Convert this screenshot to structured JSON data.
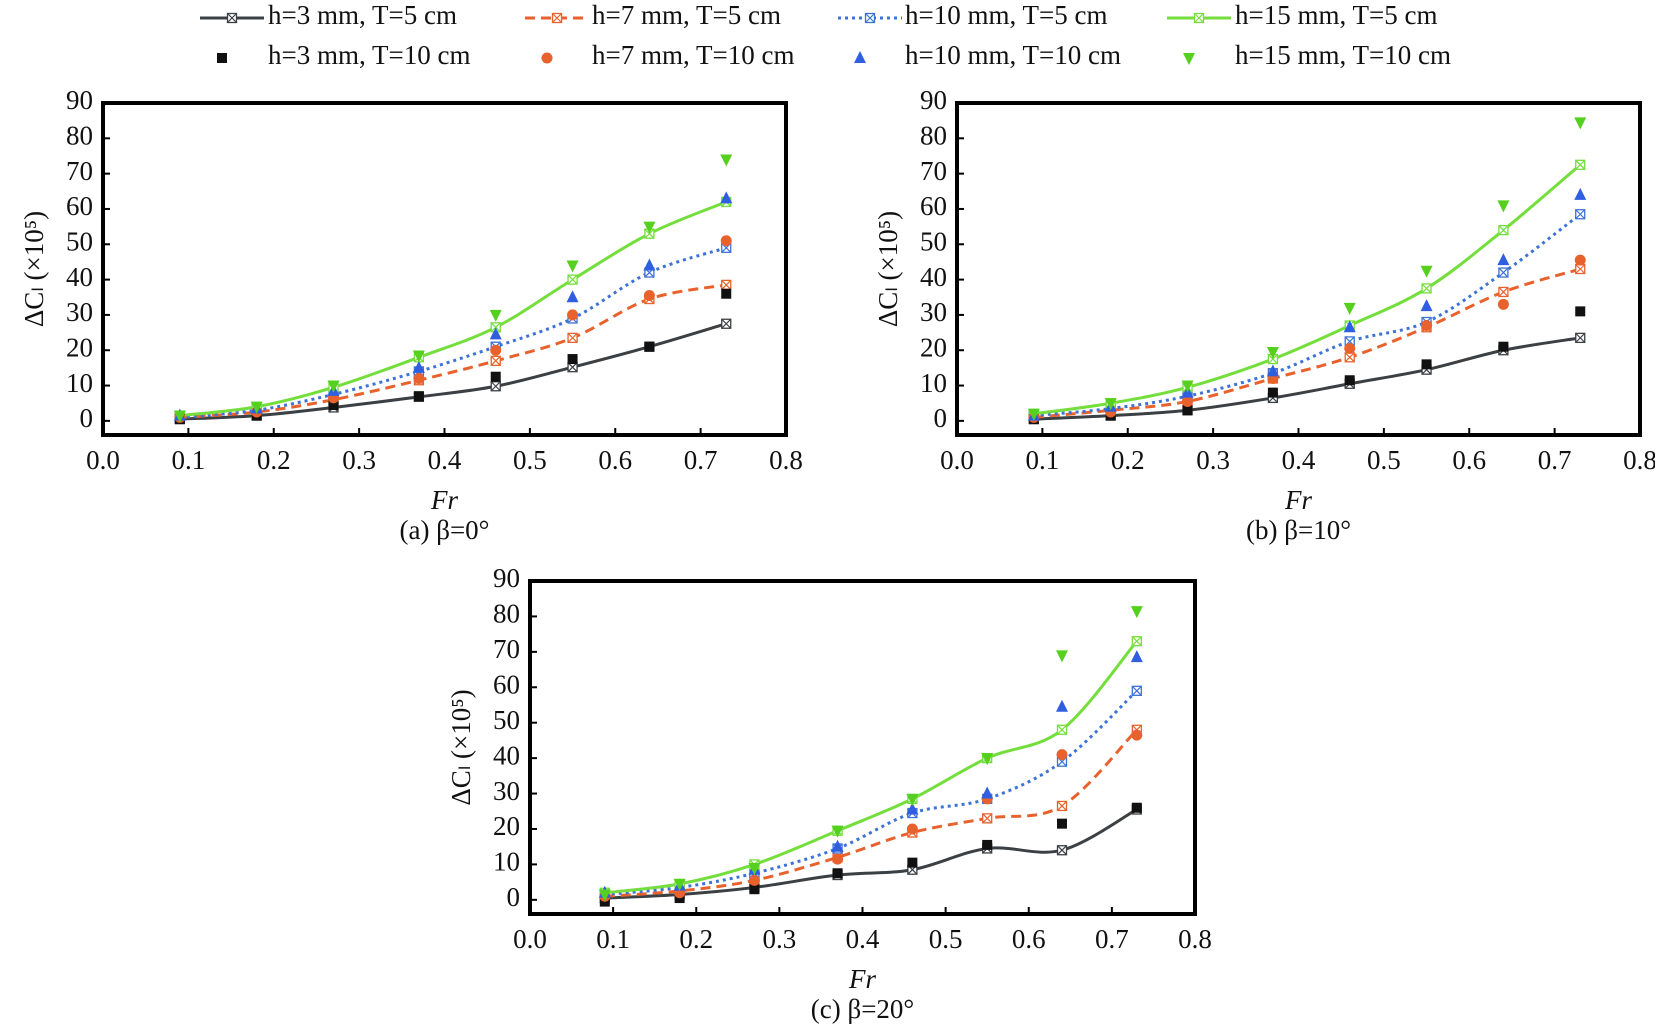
{
  "legend": {
    "entries": [
      {
        "name": "h=3 mm, T=5 cm",
        "color": "#3b4045",
        "line": "solid",
        "marker": "xsquare"
      },
      {
        "name": "h=7 mm, T=5 cm",
        "color": "#e8622d",
        "line": "dashed",
        "marker": "xsquare"
      },
      {
        "name": "h=10 mm, T=5 cm",
        "color": "#3d72d6",
        "line": "dotted",
        "marker": "xsquare"
      },
      {
        "name": "h=15 mm, T=5 cm",
        "color": "#74de3c",
        "line": "solid",
        "marker": "xsquare"
      },
      {
        "name": "h=3 mm, T=10 cm",
        "color": "#111111",
        "line": "none",
        "marker": "square"
      },
      {
        "name": "h=7 mm, T=10 cm",
        "color": "#e8622d",
        "line": "none",
        "marker": "circle"
      },
      {
        "name": "h=10 mm, T=10 cm",
        "color": "#2f5fe0",
        "line": "none",
        "marker": "triangle-up"
      },
      {
        "name": "h=15 mm, T=10 cm",
        "color": "#55d01e",
        "line": "none",
        "marker": "triangle-down"
      }
    ]
  },
  "chart_data": [
    {
      "type": "line",
      "subtitle": "(a) β=0°",
      "xlabel": "Fr",
      "ylabel": "ΔCₗ (×10⁵)",
      "x": [
        0.09,
        0.18,
        0.27,
        0.37,
        0.46,
        0.55,
        0.64,
        0.73
      ],
      "xlim": [
        0,
        0.8
      ],
      "xticks": [
        {
          "value": 0,
          "label": "0.0"
        },
        0.1,
        0.2,
        0.3,
        0.4,
        0.5,
        0.6,
        0.7,
        0.8
      ],
      "ylim": [
        -4,
        90
      ],
      "yticks": [
        0,
        10,
        20,
        30,
        40,
        50,
        60,
        70,
        80,
        90
      ],
      "series": [
        {
          "values": [
            0.5,
            1.5,
            3.8,
            6.8,
            9.8,
            15.2,
            21,
            27.5
          ]
        },
        {
          "values": [
            1,
            2.5,
            6,
            11.5,
            17,
            23.5,
            34.5,
            38.5
          ]
        },
        {
          "values": [
            1,
            3,
            7.5,
            14,
            21,
            29,
            42,
            49
          ]
        },
        {
          "values": [
            1.5,
            4,
            9.5,
            18,
            26.5,
            40,
            53,
            62
          ]
        },
        {
          "values": [
            0.5,
            1.5,
            4.5,
            7,
            12.5,
            17.5,
            21,
            36
          ]
        },
        {
          "values": [
            1,
            2.5,
            6.5,
            12,
            20,
            30,
            35.5,
            51
          ]
        },
        {
          "values": [
            1.5,
            3.5,
            8.5,
            15,
            24.5,
            35,
            44,
            63
          ]
        },
        {
          "values": [
            1.5,
            4,
            10,
            18.5,
            30,
            44,
            55,
            74
          ]
        }
      ]
    },
    {
      "type": "line",
      "subtitle": "(b) β=10°",
      "xlabel": "Fr",
      "ylabel": "ΔCₗ (×10⁵)",
      "x": [
        0.09,
        0.18,
        0.27,
        0.37,
        0.46,
        0.55,
        0.64,
        0.73
      ],
      "xlim": [
        0,
        0.8
      ],
      "xticks": [
        {
          "value": 0,
          "label": "0.0"
        },
        0.1,
        0.2,
        0.3,
        0.4,
        0.5,
        0.6,
        0.7,
        0.8
      ],
      "ylim": [
        -4,
        90
      ],
      "yticks": [
        0,
        10,
        20,
        30,
        40,
        50,
        60,
        70,
        80,
        90
      ],
      "series": [
        {
          "values": [
            0.5,
            1.5,
            3,
            6.5,
            10.5,
            14.5,
            20,
            23.5
          ]
        },
        {
          "values": [
            1,
            3,
            5.5,
            12,
            18,
            26.5,
            36.5,
            43
          ]
        },
        {
          "values": [
            1.5,
            3.5,
            7,
            13.5,
            22.5,
            28,
            42,
            58.5
          ]
        },
        {
          "values": [
            2,
            5,
            9.5,
            17.5,
            27,
            37.5,
            54,
            72.5
          ]
        },
        {
          "values": [
            0.5,
            1.5,
            3,
            8,
            11.5,
            16,
            21,
            31
          ]
        },
        {
          "values": [
            1,
            2.5,
            5.5,
            12,
            20.5,
            27,
            33,
            45.5
          ]
        },
        {
          "values": [
            1.5,
            4,
            8,
            14,
            26.5,
            32.5,
            45.5,
            64
          ]
        },
        {
          "values": [
            2,
            5,
            10,
            19.5,
            32,
            42.5,
            61,
            84.5
          ]
        }
      ]
    },
    {
      "type": "line",
      "subtitle": "(c) β=20°",
      "xlabel": "Fr",
      "ylabel": "ΔCₗ (×10⁵)",
      "x": [
        0.09,
        0.18,
        0.27,
        0.37,
        0.46,
        0.55,
        0.64,
        0.73
      ],
      "xlim": [
        0,
        0.8
      ],
      "xticks": [
        {
          "value": 0,
          "label": "0.0"
        },
        0.1,
        0.2,
        0.3,
        0.4,
        0.5,
        0.6,
        0.7,
        0.8
      ],
      "ylim": [
        -4,
        90
      ],
      "yticks": [
        0,
        10,
        20,
        30,
        40,
        50,
        60,
        70,
        80,
        90
      ],
      "series": [
        {
          "values": [
            0.5,
            1.5,
            3.5,
            7,
            8.5,
            14.5,
            14,
            25.5
          ]
        },
        {
          "values": [
            1,
            2.5,
            5.5,
            12,
            19,
            23,
            26.5,
            48
          ]
        },
        {
          "values": [
            1.5,
            3.5,
            7.5,
            14.5,
            24.5,
            28.5,
            39,
            59
          ]
        },
        {
          "values": [
            2,
            4.5,
            10,
            19.5,
            28.5,
            40,
            48,
            73
          ]
        },
        {
          "values": [
            -0.5,
            0.5,
            3,
            7.5,
            10.5,
            15.5,
            21.5,
            26
          ]
        },
        {
          "values": [
            1,
            2,
            5.5,
            11.5,
            20,
            28.5,
            41,
            46.5
          ]
        },
        {
          "values": [
            2,
            4,
            8.5,
            15,
            25.5,
            30,
            54.5,
            68.5
          ]
        },
        {
          "values": [
            1.5,
            4.5,
            9,
            19.5,
            28.5,
            40,
            69,
            81.5
          ]
        }
      ]
    }
  ]
}
